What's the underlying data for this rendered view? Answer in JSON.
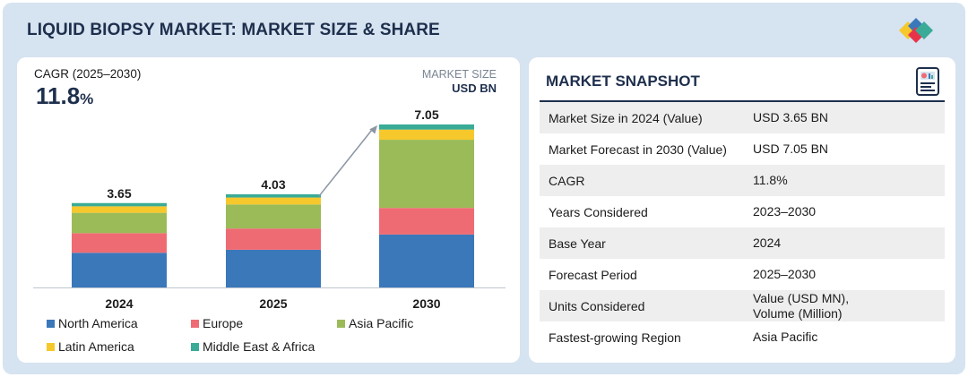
{
  "header": {
    "title": "LIQUID BIOPSY MARKET: MARKET SIZE & SHARE"
  },
  "colors": {
    "north_america": "#3a78ba",
    "europe": "#ef6b73",
    "asia_pacific": "#9bbb59",
    "latin_america": "#f6c82b",
    "middle_east_africa": "#3aab96",
    "title_navy": "#1e2f4d"
  },
  "left_panel": {
    "cagr_label": "CAGR (2025–2030)",
    "cagr_value": "11.8",
    "cagr_unit": "%",
    "market_size_label": "MARKET SIZE",
    "market_size_unit": "USD BN"
  },
  "chart_data": {
    "type": "bar",
    "stacked": true,
    "categories": [
      "2024",
      "2025",
      "2030"
    ],
    "totals": [
      3.65,
      4.03,
      7.05
    ],
    "total_labels": [
      "3.65",
      "4.03",
      "7.05"
    ],
    "series": [
      {
        "name": "North America",
        "color": "#3a78ba",
        "values": [
          1.5,
          1.63,
          2.29
        ]
      },
      {
        "name": "Europe",
        "color": "#ef6b73",
        "values": [
          0.85,
          0.92,
          1.15
        ]
      },
      {
        "name": "Asia Pacific",
        "color": "#9bbb59",
        "values": [
          0.88,
          1.04,
          2.95
        ]
      },
      {
        "name": "Latin America",
        "color": "#f6c82b",
        "values": [
          0.28,
          0.3,
          0.44
        ]
      },
      {
        "name": "Middle East & Africa",
        "color": "#3aab96",
        "values": [
          0.14,
          0.14,
          0.22
        ]
      }
    ],
    "ylim": [
      0,
      7.05
    ],
    "grid": false,
    "legend_position": "bottom",
    "annotation": "arrow from 2025 bar top to 2030 bar top"
  },
  "snapshot": {
    "title": "MARKET SNAPSHOT",
    "icon": "report-document-icon",
    "rows": [
      {
        "label": "Market Size in 2024 (Value)",
        "value": "USD 3.65 BN"
      },
      {
        "label": "Market Forecast in 2030 (Value)",
        "value": "USD 7.05 BN"
      },
      {
        "label": "CAGR",
        "value": "11.8%"
      },
      {
        "label": "Years Considered",
        "value": "2023–2030"
      },
      {
        "label": "Base Year",
        "value": "2024"
      },
      {
        "label": "Forecast Period",
        "value": "2025–2030"
      },
      {
        "label": "Units Considered",
        "value": "Value (USD MN),\nVolume (Million)"
      },
      {
        "label": "Fastest-growing Region",
        "value": "Asia Pacific"
      }
    ]
  }
}
